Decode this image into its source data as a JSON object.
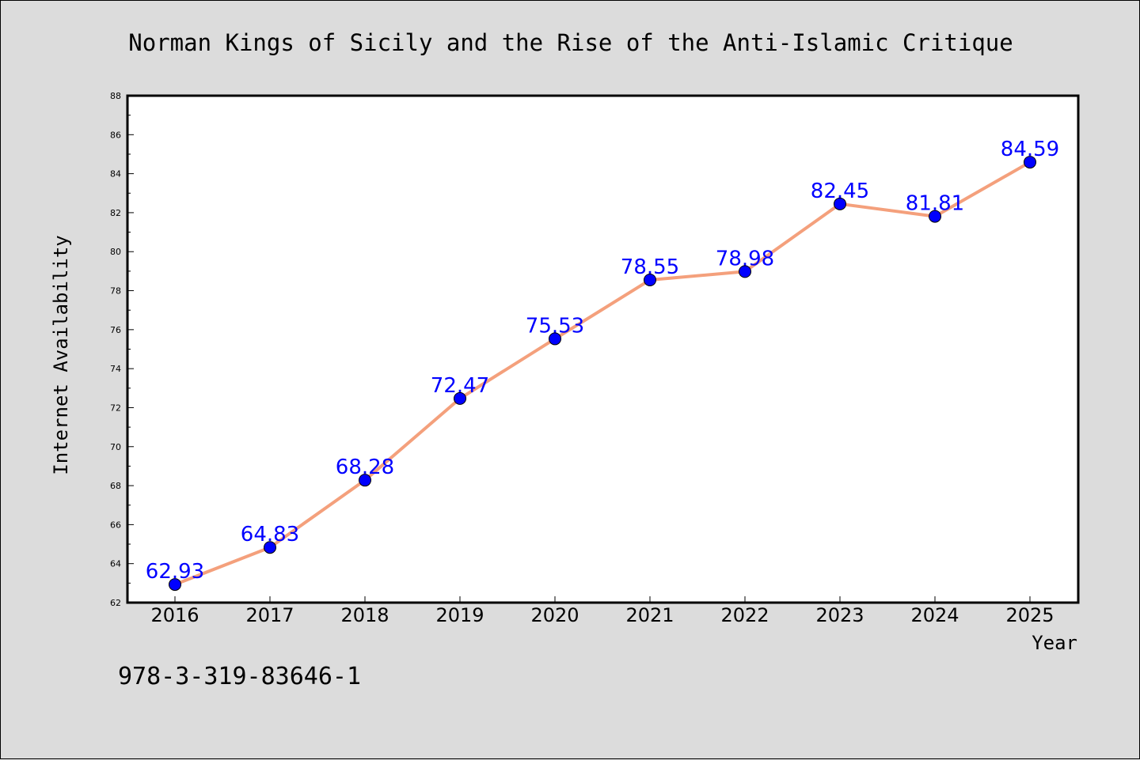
{
  "chart_data": {
    "type": "line",
    "title": "Norman Kings of Sicily and the Rise of the Anti-Islamic Critique",
    "xlabel": "Year",
    "ylabel": "Internet Availability",
    "x": [
      "2016",
      "2017",
      "2018",
      "2019",
      "2020",
      "2021",
      "2022",
      "2023",
      "2024",
      "2025"
    ],
    "series": [
      {
        "values": [
          62.93,
          64.83,
          68.28,
          72.47,
          75.53,
          78.55,
          78.98,
          82.45,
          81.81,
          84.59
        ],
        "line_color": "#f4a07c",
        "marker_color": "#0000ff"
      }
    ],
    "data_labels": [
      "62.93",
      "64.83",
      "68.28",
      "72.47",
      "75.53",
      "78.55",
      "78.98",
      "82.45",
      "81.81",
      "84.59"
    ],
    "ylim": [
      62,
      88
    ],
    "yticks": [
      62,
      64,
      66,
      68,
      70,
      72,
      74,
      76,
      78,
      80,
      82,
      84,
      86,
      88
    ],
    "grid": false,
    "legend": false
  },
  "footer_code": "978-3-319-83646-1",
  "colors": {
    "background": "#dcdcdc",
    "plot_background": "#ffffff",
    "label_color": "#0000ff"
  }
}
